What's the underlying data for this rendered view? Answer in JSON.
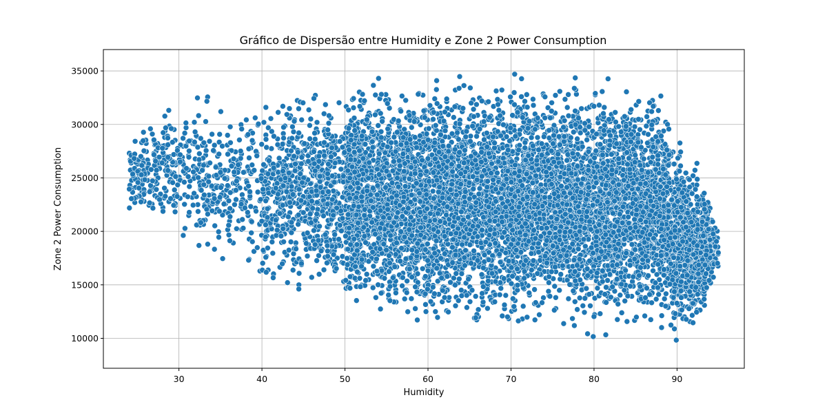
{
  "chart_data": {
    "type": "scatter",
    "title": "Gráfico de Dispersão entre Humidity e Zone 2 Power Consumption",
    "xlabel": "Humidity",
    "ylabel": "Zone 2  Power Consumption",
    "xlim": [
      20.9,
      98.1
    ],
    "ylim": [
      7200,
      37000
    ],
    "x_ticks": [
      30,
      40,
      50,
      60,
      70,
      80,
      90
    ],
    "y_ticks": [
      10000,
      15000,
      20000,
      25000,
      30000,
      35000
    ],
    "grid": true,
    "marker_color": "#1f77b4",
    "marker_edge": "#ffffff",
    "density_profile": {
      "humidity": [
        24,
        27,
        30,
        33,
        36,
        40,
        45,
        50,
        55,
        60,
        65,
        70,
        75,
        80,
        84,
        88,
        90,
        92,
        93.5,
        95
      ],
      "power_min": [
        20000,
        19500,
        18000,
        17000,
        15500,
        14700,
        13000,
        12000,
        11000,
        10000,
        9600,
        10200,
        10500,
        9500,
        9600,
        9500,
        8500,
        9500,
        12500,
        15000
      ],
      "power_max": [
        30000,
        32000,
        34000,
        33500,
        33000,
        34000,
        34500,
        34800,
        35000,
        35000,
        35200,
        35500,
        35000,
        34800,
        34600,
        34000,
        30000,
        27000,
        25000,
        21000
      ]
    }
  }
}
